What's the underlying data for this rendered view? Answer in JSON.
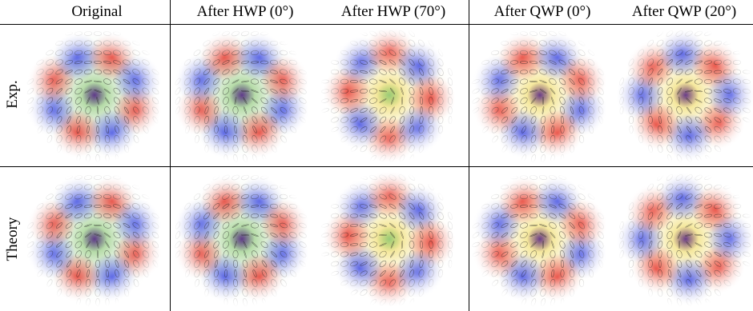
{
  "columns": [
    {
      "id": "original",
      "label": "Original"
    },
    {
      "id": "hwp0",
      "label": "After HWP (0°)"
    },
    {
      "id": "hwp70",
      "label": "After HWP (70°)"
    },
    {
      "id": "qwp0",
      "label": "After QWP (0°)"
    },
    {
      "id": "qwp20",
      "label": "After QWP (20°)"
    }
  ],
  "rows": [
    {
      "id": "exp",
      "label": "Exp."
    },
    {
      "id": "theory",
      "label": "Theory"
    }
  ],
  "colors": {
    "red": "#e8443a",
    "blue": "#4b57e6",
    "green": "#8fc97a",
    "yellow": "#f0dc6a",
    "purple": "#5a2a8c",
    "ellipse": "#1a1a1a"
  }
}
